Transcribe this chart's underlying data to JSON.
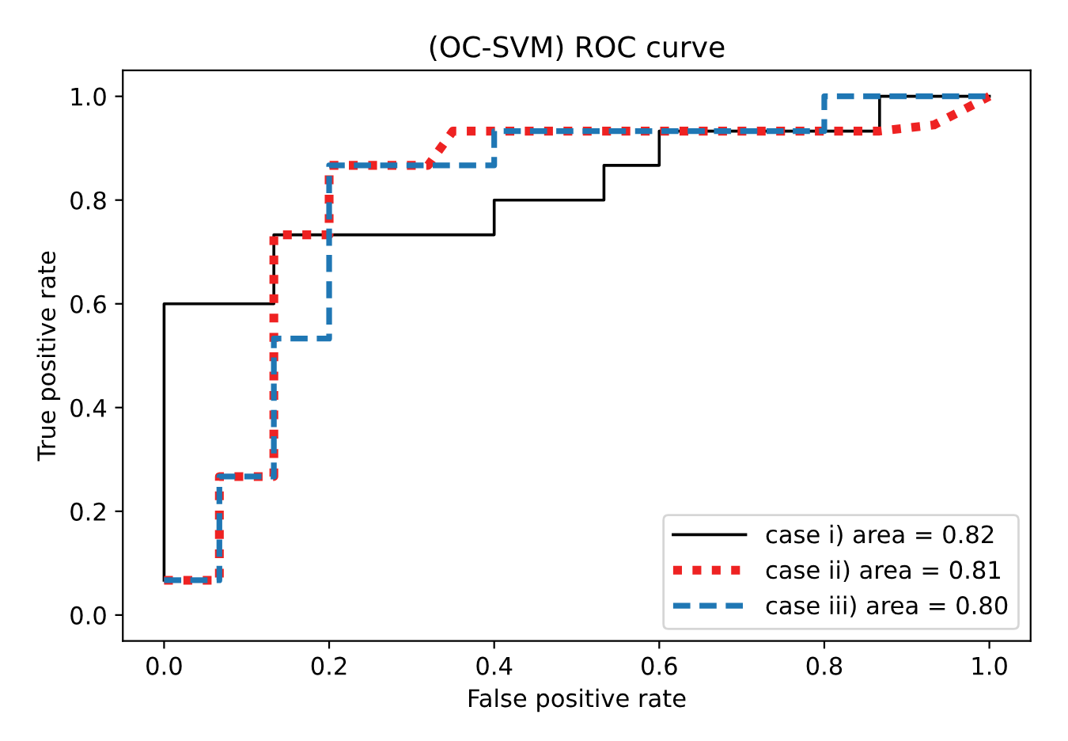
{
  "chart_data": {
    "type": "line",
    "title": "(OC-SVM) ROC curve",
    "xlabel": "False positive rate",
    "ylabel": "True positive rate",
    "xlim": [
      -0.05,
      1.05
    ],
    "ylim": [
      -0.05,
      1.05
    ],
    "xticks": [
      {
        "value": 0,
        "label": "0.0"
      },
      0.2,
      0.4,
      0.6,
      0.8,
      {
        "value": 1,
        "label": "1.0"
      }
    ],
    "yticks": [
      {
        "value": 0,
        "label": "0.0"
      },
      0.2,
      0.4,
      0.6,
      0.8,
      {
        "value": 1,
        "label": "1.0"
      }
    ],
    "grid": false,
    "legend": "bottom right",
    "series": [
      {
        "name": "case i) area = 0.82",
        "color": "#000000",
        "line_style": "solid",
        "x": [
          0,
          0,
          0.133,
          0.133,
          0.4,
          0.4,
          0.533,
          0.533,
          0.6,
          0.6,
          0.867,
          0.867,
          1
        ],
        "values": [
          0.067,
          0.6,
          0.6,
          0.733,
          0.733,
          0.8,
          0.8,
          0.867,
          0.867,
          0.933,
          0.933,
          1,
          1
        ]
      },
      {
        "name": "case ii) area = 0.81",
        "color": "#ee2222",
        "line_style": "dotted",
        "x": [
          0,
          0.067,
          0.067,
          0.133,
          0.133,
          0.2,
          0.2,
          0.32,
          0.35,
          0.867,
          0.933,
          1
        ],
        "values": [
          0.067,
          0.067,
          0.267,
          0.267,
          0.733,
          0.733,
          0.867,
          0.867,
          0.933,
          0.933,
          0.945,
          1
        ]
      },
      {
        "name": "case iii) area = 0.80",
        "color": "#1f77b4",
        "line_style": "dashed",
        "x": [
          0,
          0.067,
          0.067,
          0.133,
          0.133,
          0.2,
          0.2,
          0.4,
          0.4,
          0.8,
          0.8,
          1
        ],
        "values": [
          0.067,
          0.067,
          0.267,
          0.267,
          0.533,
          0.533,
          0.867,
          0.867,
          0.933,
          0.933,
          1,
          1
        ]
      }
    ]
  }
}
